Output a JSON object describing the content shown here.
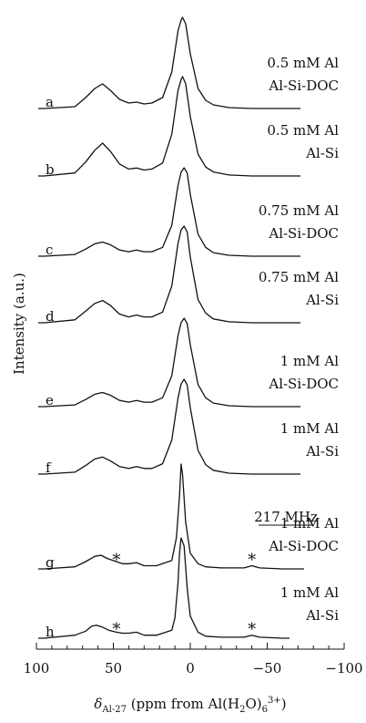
{
  "chart_data": {
    "type": "line",
    "title": "",
    "xlabel_parts": {
      "symbol": "δ",
      "subscript": "Al-27",
      "main": " (ppm from Al(H",
      "sub2": "2",
      "mid": "O)",
      "sub6": "6",
      "sup": "3+",
      "end": ")"
    },
    "ylabel": "Intensity (a.u.)",
    "xlim": [
      100,
      -100
    ],
    "x_reversed": true,
    "xticks": [
      100,
      50,
      0,
      -50,
      -100
    ],
    "xtick_labels": [
      "100",
      "50",
      "0",
      "−50",
      "−100"
    ],
    "field_label": "217 MHz",
    "spinning_sideband_marker": "*",
    "spinning_sideband_x": [
      48,
      -40
    ],
    "series": [
      {
        "letter": "a",
        "line1": "0.5 mM Al",
        "line2": "Al-Si-DOC",
        "x": [
          95,
          75,
          68,
          62,
          57,
          52,
          46,
          40,
          35,
          30,
          25,
          18,
          12,
          8,
          6,
          5,
          3,
          0,
          -5,
          -10,
          -15,
          -25,
          -40,
          -60
        ],
        "y": [
          0,
          0.02,
          0.12,
          0.22,
          0.27,
          0.2,
          0.1,
          0.06,
          0.07,
          0.05,
          0.06,
          0.12,
          0.4,
          0.85,
          0.97,
          1.0,
          0.93,
          0.6,
          0.22,
          0.09,
          0.04,
          0.01,
          0,
          0
        ]
      },
      {
        "letter": "b",
        "line1": "0.5 mM Al",
        "line2": "Al-Si",
        "x": [
          95,
          75,
          68,
          62,
          57,
          52,
          46,
          40,
          35,
          30,
          25,
          18,
          12,
          8,
          6,
          5,
          3,
          0,
          -5,
          -10,
          -15,
          -25,
          -40,
          -60
        ],
        "y": [
          0,
          0.03,
          0.14,
          0.26,
          0.33,
          0.25,
          0.12,
          0.07,
          0.08,
          0.06,
          0.07,
          0.13,
          0.42,
          0.86,
          0.97,
          1.0,
          0.93,
          0.6,
          0.22,
          0.09,
          0.04,
          0.01,
          0,
          0
        ]
      },
      {
        "letter": "c",
        "line1": "0.75 mM Al",
        "line2": "Al-Si-DOC",
        "x": [
          95,
          75,
          68,
          62,
          57,
          52,
          46,
          40,
          35,
          30,
          25,
          18,
          12,
          8,
          6,
          4,
          2,
          0,
          -5,
          -10,
          -15,
          -25,
          -40,
          -60
        ],
        "y": [
          0,
          0.02,
          0.08,
          0.14,
          0.16,
          0.13,
          0.07,
          0.05,
          0.07,
          0.05,
          0.05,
          0.1,
          0.35,
          0.8,
          0.95,
          1.0,
          0.94,
          0.7,
          0.25,
          0.1,
          0.04,
          0.01,
          0,
          0
        ]
      },
      {
        "letter": "d",
        "line1": "0.75 mM Al",
        "line2": "Al-Si",
        "x": [
          95,
          75,
          68,
          62,
          57,
          52,
          46,
          40,
          35,
          30,
          25,
          18,
          12,
          8,
          6,
          4,
          2,
          0,
          -5,
          -10,
          -15,
          -25,
          -40,
          -60
        ],
        "y": [
          0,
          0.03,
          0.12,
          0.2,
          0.23,
          0.18,
          0.09,
          0.06,
          0.08,
          0.06,
          0.06,
          0.11,
          0.38,
          0.82,
          0.96,
          1.0,
          0.94,
          0.68,
          0.24,
          0.1,
          0.04,
          0.01,
          0,
          0
        ]
      },
      {
        "letter": "e",
        "line1": "1 mM Al",
        "line2": "Al-Si-DOC",
        "x": [
          95,
          75,
          68,
          62,
          57,
          52,
          46,
          40,
          35,
          30,
          25,
          18,
          12,
          8,
          6,
          4,
          2,
          0,
          -5,
          -10,
          -15,
          -25,
          -40,
          -60
        ],
        "y": [
          0,
          0.02,
          0.08,
          0.14,
          0.16,
          0.13,
          0.07,
          0.05,
          0.07,
          0.05,
          0.05,
          0.1,
          0.35,
          0.8,
          0.95,
          1.0,
          0.94,
          0.7,
          0.25,
          0.1,
          0.04,
          0.01,
          0,
          0
        ]
      },
      {
        "letter": "f",
        "line1": "1 mM Al",
        "line2": "Al-Si",
        "x": [
          95,
          75,
          68,
          62,
          57,
          52,
          46,
          40,
          35,
          30,
          25,
          18,
          12,
          8,
          6,
          4,
          2,
          0,
          -5,
          -10,
          -15,
          -25,
          -40,
          -60
        ],
        "y": [
          0,
          0.02,
          0.09,
          0.16,
          0.18,
          0.14,
          0.08,
          0.06,
          0.08,
          0.06,
          0.06,
          0.11,
          0.36,
          0.8,
          0.95,
          1.0,
          0.94,
          0.7,
          0.25,
          0.1,
          0.04,
          0.01,
          0,
          0
        ]
      },
      {
        "letter": "g",
        "line1": "1 mM Al",
        "line2": "Al-Si-DOC",
        "x": [
          95,
          75,
          68,
          62,
          58,
          54,
          48,
          44,
          40,
          35,
          30,
          22,
          12,
          9,
          7,
          6,
          5,
          3,
          0,
          -5,
          -10,
          -20,
          -35,
          -40,
          -45,
          -60,
          -72
        ],
        "y": [
          0,
          0.02,
          0.07,
          0.12,
          0.13,
          0.1,
          0.07,
          0.05,
          0.05,
          0.06,
          0.03,
          0.03,
          0.08,
          0.3,
          0.7,
          1.0,
          0.9,
          0.45,
          0.15,
          0.05,
          0.02,
          0.01,
          0.01,
          0.03,
          0.01,
          0,
          0
        ]
      },
      {
        "letter": "h",
        "line1": "1 mM Al",
        "line2": "Al-Si",
        "x": [
          95,
          75,
          68,
          64,
          61,
          57,
          53,
          48,
          44,
          40,
          35,
          30,
          22,
          12,
          10,
          8,
          7,
          6,
          4,
          2,
          0,
          -5,
          -10,
          -20,
          -35,
          -40,
          -45,
          -60
        ],
        "y": [
          0,
          0.03,
          0.07,
          0.12,
          0.13,
          0.11,
          0.08,
          0.06,
          0.05,
          0.05,
          0.06,
          0.03,
          0.03,
          0.08,
          0.2,
          0.55,
          0.85,
          1.0,
          0.92,
          0.5,
          0.22,
          0.06,
          0.02,
          0.01,
          0.01,
          0.03,
          0.01,
          0
        ]
      }
    ]
  }
}
